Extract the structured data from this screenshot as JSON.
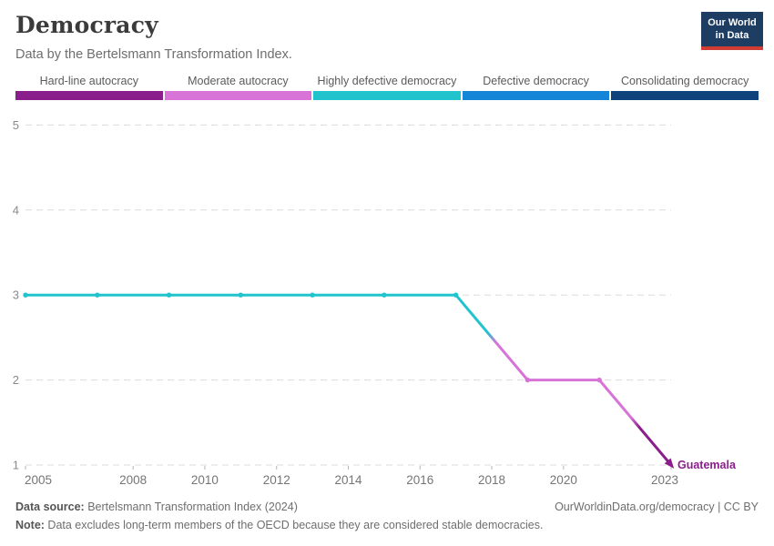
{
  "header": {
    "title": "Democracy",
    "subtitle": "Data by the Bertelsmann Transformation Index.",
    "logo": {
      "line1": "Our World",
      "line2": "in Data",
      "bg_color": "#1d3d63",
      "accent_color": "#d13d33"
    }
  },
  "legend": {
    "items": [
      {
        "label": "Hard-line autocracy",
        "color": "#8a1e8a"
      },
      {
        "label": "Moderate autocracy",
        "color": "#d873d8"
      },
      {
        "label": "Highly defective democracy",
        "color": "#21c3cd"
      },
      {
        "label": "Defective democracy",
        "color": "#1585d8"
      },
      {
        "label": "Consolidating democracy",
        "color": "#0f437c"
      }
    ]
  },
  "chart_data": {
    "type": "line",
    "title": "Democracy",
    "subtitle": "Data by the Bertelsmann Transformation Index.",
    "series": [
      {
        "name": "Guatemala",
        "x": [
          2005,
          2007,
          2009,
          2011,
          2013,
          2015,
          2017,
          2019,
          2021,
          2023
        ],
        "values": [
          3,
          3,
          3,
          3,
          3,
          3,
          3,
          2,
          2,
          1
        ],
        "label_color": "#8a1e8a"
      }
    ],
    "x_ticks": [
      2005,
      2008,
      2010,
      2012,
      2014,
      2016,
      2018,
      2020,
      2023
    ],
    "y_ticks": [
      1,
      2,
      3,
      4,
      5
    ],
    "xlim": [
      2005,
      2023
    ],
    "ylim": [
      1,
      5
    ],
    "grid": "horizontal-dashed",
    "legend_position": "top",
    "category_colors": {
      "1": "#8a1e8a",
      "2": "#d873d8",
      "3": "#21c3cd",
      "4": "#1585d8",
      "5": "#0f437c"
    }
  },
  "footer": {
    "source_label": "Data source:",
    "source_text": " Bertelsmann Transformation Index (2024)",
    "note_label": "Note:",
    "note_text": " Data excludes long-term members of the OECD because they are considered stable democracies.",
    "link_text": "OurWorldinData.org/democracy | CC BY"
  }
}
